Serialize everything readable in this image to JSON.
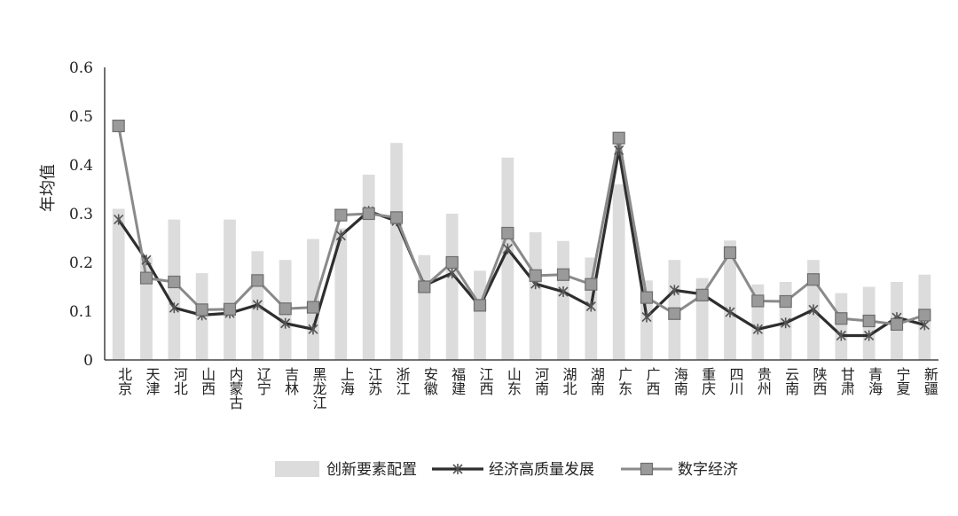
{
  "chart_data": {
    "type": "bar+line",
    "ylabel": "年均值",
    "ylim": [
      0,
      0.6
    ],
    "yticks": [
      "0",
      "0.1",
      "0.2",
      "0.3",
      "0.4",
      "0.5",
      "0.6"
    ],
    "categories": [
      "北京",
      "天津",
      "河北",
      "山西",
      "内蒙古",
      "辽宁",
      "吉林",
      "黑龙江",
      "上海",
      "江苏",
      "浙江",
      "安徽",
      "福建",
      "江西",
      "山东",
      "河南",
      "湖北",
      "湖南",
      "广东",
      "广西",
      "海南",
      "重庆",
      "四川",
      "贵州",
      "云南",
      "陕西",
      "甘肃",
      "青海",
      "宁夏",
      "新疆"
    ],
    "series": [
      {
        "name": "创新要素配置",
        "type": "bar",
        "color": "#dcdcdc",
        "values": [
          0.31,
          0.21,
          0.288,
          0.178,
          0.288,
          0.223,
          0.205,
          0.248,
          0.27,
          0.38,
          0.445,
          0.215,
          0.3,
          0.183,
          0.415,
          0.262,
          0.244,
          0.21,
          0.36,
          0.163,
          0.205,
          0.168,
          0.245,
          0.155,
          0.16,
          0.205,
          0.137,
          0.15,
          0.16,
          0.175
        ]
      },
      {
        "name": "经济高质量发展",
        "type": "line",
        "marker": "star",
        "color": "#2e2e2e",
        "values": [
          0.288,
          0.205,
          0.107,
          0.092,
          0.096,
          0.113,
          0.075,
          0.063,
          0.255,
          0.305,
          0.285,
          0.153,
          0.178,
          0.11,
          0.228,
          0.156,
          0.14,
          0.11,
          0.43,
          0.088,
          0.143,
          0.135,
          0.098,
          0.063,
          0.076,
          0.103,
          0.05,
          0.05,
          0.087,
          0.072
        ]
      },
      {
        "name": "数字经济",
        "type": "line",
        "marker": "square",
        "color": "#8a8a8a",
        "values": [
          0.48,
          0.168,
          0.16,
          0.103,
          0.104,
          0.163,
          0.105,
          0.108,
          0.297,
          0.3,
          0.292,
          0.15,
          0.2,
          0.112,
          0.26,
          0.173,
          0.175,
          0.155,
          0.455,
          0.128,
          0.095,
          0.133,
          0.22,
          0.121,
          0.12,
          0.165,
          0.085,
          0.08,
          0.073,
          0.092
        ]
      }
    ]
  }
}
